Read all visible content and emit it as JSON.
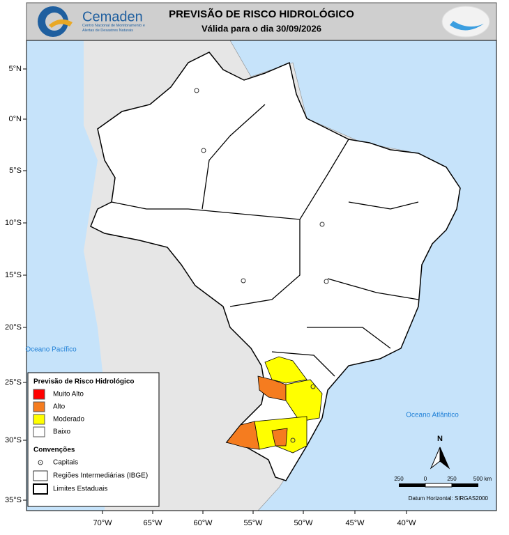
{
  "header": {
    "logo_name": "Cemaden",
    "logo_subtitle": "Centro Nacional de Monitoramento e Alertas de Desastres Naturais",
    "title": "PREVISÃO DE RISCO HIDROLÓGICO",
    "subtitle": "Válida para o dia 30/09/2026"
  },
  "map": {
    "lat_labels": [
      "5°N",
      "0°N",
      "5°S",
      "10°S",
      "15°S",
      "20°S",
      "25°S",
      "30°S",
      "35°S"
    ],
    "lon_labels": [
      "70°W",
      "65°W",
      "60°W",
      "55°W",
      "50°W",
      "45°W",
      "40°W"
    ],
    "ocean_labels": [
      "Oceano Pacífico",
      "Oceano Atlântico"
    ],
    "north": "N",
    "scale_labels": [
      "250",
      "0",
      "250",
      "500 km"
    ],
    "datum": "Datum Horizontal: SIRGAS2000"
  },
  "legend": {
    "title": "Previsão de Risco Hidrológico",
    "items": [
      {
        "label": "Muito Alto",
        "color": "#ff0000"
      },
      {
        "label": "Alto",
        "color": "#f57c1f"
      },
      {
        "label": "Moderado",
        "color": "#ffff00"
      },
      {
        "label": "Baixo",
        "color": "#ffffff"
      }
    ],
    "conventions_title": "Convenções",
    "conventions": [
      "Capitais",
      "Regiões Intermediárias (IBGE)",
      "Limites Estaduais"
    ]
  }
}
